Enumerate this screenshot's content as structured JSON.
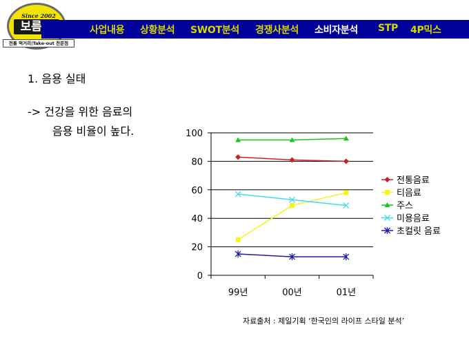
{
  "logo": {
    "since": "Since 2002",
    "brand": "보름달",
    "tagline": "전통 먹거리|Take-out 전문점"
  },
  "nav": {
    "items": [
      {
        "label": "사업내용"
      },
      {
        "label": "상황분석"
      },
      {
        "label": "SWOT분석"
      },
      {
        "label": "경쟁사분석"
      },
      {
        "label": "소비자분석",
        "active": true
      },
      {
        "label": "STP"
      },
      {
        "label": "4P믹스"
      }
    ]
  },
  "content": {
    "heading": "1. 음용 실태",
    "point_line1": "-> 건강을 위한 음료의",
    "point_line2": "음용 비율이 높다."
  },
  "colors": {
    "nav_bg": "#00009a",
    "nav_text": "#d7d700",
    "nav_active": "#ffffff"
  },
  "chart_data": {
    "type": "line",
    "categories": [
      "99년",
      "00년",
      "01년"
    ],
    "ylim": [
      0,
      100
    ],
    "yticks": [
      "0",
      "20",
      "40",
      "60",
      "80",
      "100"
    ],
    "grid": true,
    "legend_position": "right",
    "series": [
      {
        "name": "전통음료",
        "values": [
          83,
          81,
          80
        ],
        "color": "#cc1f1f",
        "marker": "diamond"
      },
      {
        "name": "티음료",
        "values": [
          25,
          49,
          58
        ],
        "color": "#f5f517",
        "marker": "square"
      },
      {
        "name": "주스",
        "values": [
          95,
          95,
          96
        ],
        "color": "#1ec41e",
        "marker": "triangle"
      },
      {
        "name": "미용음료",
        "values": [
          57,
          53,
          49
        ],
        "color": "#3fdcec",
        "marker": "x"
      },
      {
        "name": "초컬릿 음료",
        "values": [
          15,
          13,
          13
        ],
        "color": "#1a1aa8",
        "marker": "star"
      }
    ]
  },
  "source": "자료출처 : 제일기획 ‘한국인의 라이프 스타일 분석’"
}
